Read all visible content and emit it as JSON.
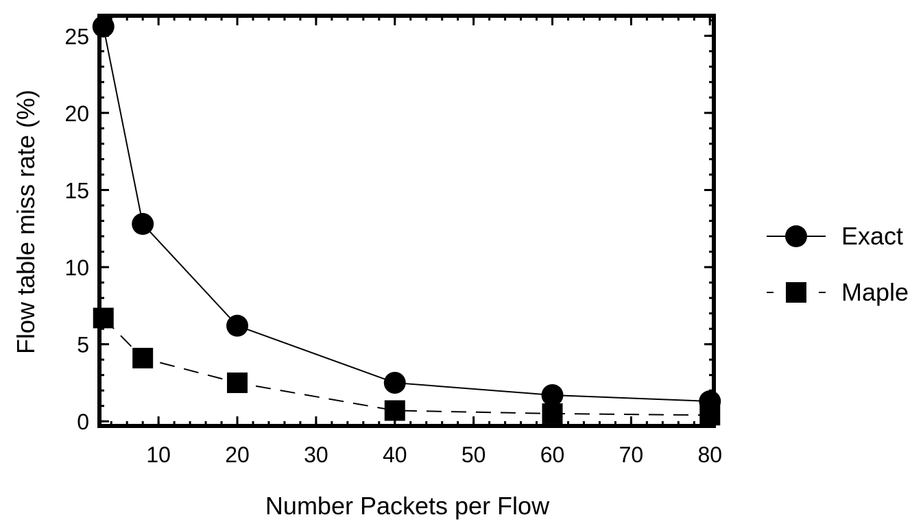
{
  "chart_data": {
    "type": "line",
    "title": "",
    "xlabel": "Number Packets per Flow",
    "ylabel": "Flow table miss rate (%)",
    "xlim": [
      2.5,
      80.5
    ],
    "ylim": [
      -0.3,
      26.3
    ],
    "xticks": [
      10,
      20,
      30,
      40,
      50,
      60,
      70,
      80
    ],
    "yticks": [
      0,
      5,
      10,
      15,
      20,
      25
    ],
    "grid": false,
    "legend_position": "right",
    "series": [
      {
        "name": "Exact",
        "marker": "circle",
        "line_style": "solid",
        "x": [
          3,
          8,
          20,
          40,
          60,
          80
        ],
        "y": [
          25.6,
          12.8,
          6.2,
          2.5,
          1.7,
          1.3
        ]
      },
      {
        "name": "Maple",
        "marker": "square",
        "line_style": "dashed",
        "x": [
          3,
          8,
          20,
          40,
          60,
          80
        ],
        "y": [
          6.7,
          4.1,
          2.5,
          0.7,
          0.5,
          0.4
        ]
      }
    ]
  }
}
